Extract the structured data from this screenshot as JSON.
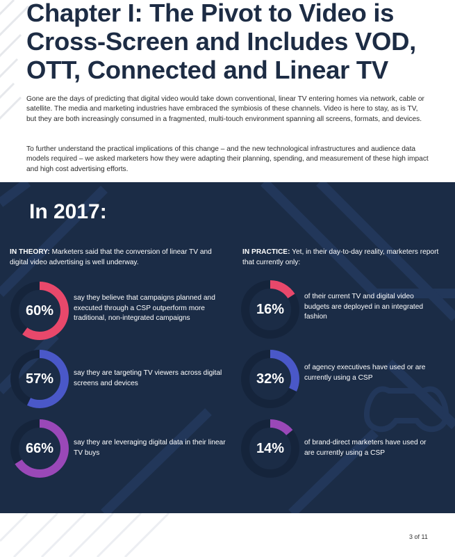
{
  "heading": "Chapter I: The Pivot to Video is Cross-Screen and Includes VOD, OTT, Connected and Linear TV",
  "intro_paragraphs": [
    "Gone are the days of predicting that digital video would take down conventional, linear TV entering homes via network, cable or satellite. The media and marketing industries have embraced the symbiosis of these channels. Video is here to stay, as is TV, but they are both increasingly consumed in a fragmented, multi-touch environment spanning all screens, formats, and devices.",
    "To further understand the practical implications of this change – and the new technological infrastructures and audience data models required – we asked marketers how they were adapting their planning, spending, and measurement of these high impact and high cost advertising efforts."
  ],
  "panel": {
    "year_title": "In 2017:",
    "left": {
      "label": "IN THEORY:",
      "text": " Marketers said that the conversion of linear TV and digital video advertising is well underway.",
      "stats": [
        {
          "value": "60%",
          "fraction": 0.6,
          "color": "#e8486b",
          "text": "say they believe that campaigns planned and executed through a CSP outperform more traditional, non-integrated campaigns"
        },
        {
          "value": "57%",
          "fraction": 0.57,
          "color": "#4a58c8",
          "text": "say they are targeting TV viewers across digital screens and devices"
        },
        {
          "value": "66%",
          "fraction": 0.66,
          "color": "#9a48b8",
          "text": "say they are leveraging digital data in their linear TV buys"
        }
      ]
    },
    "right": {
      "label": "IN PRACTICE:",
      "text": " Yet, in their day-to-day reality, marketers report that currently only:",
      "stats": [
        {
          "value": "16%",
          "fraction": 0.16,
          "color": "#e8486b",
          "text": "of their current TV and digital video budgets are deployed in an integrated fashion"
        },
        {
          "value": "32%",
          "fraction": 0.32,
          "color": "#4a58c8",
          "text": "of agency executives have used or are currently using a CSP"
        },
        {
          "value": "14%",
          "fraction": 0.14,
          "color": "#9a48b8",
          "text": "of brand-direct marketers have used or are currently using a CSP"
        }
      ]
    }
  },
  "page_number": "3 of 11",
  "colors": {
    "panel_bg": "#1b2c46",
    "heading": "#1d2c44",
    "ring_track": "#15243b"
  }
}
